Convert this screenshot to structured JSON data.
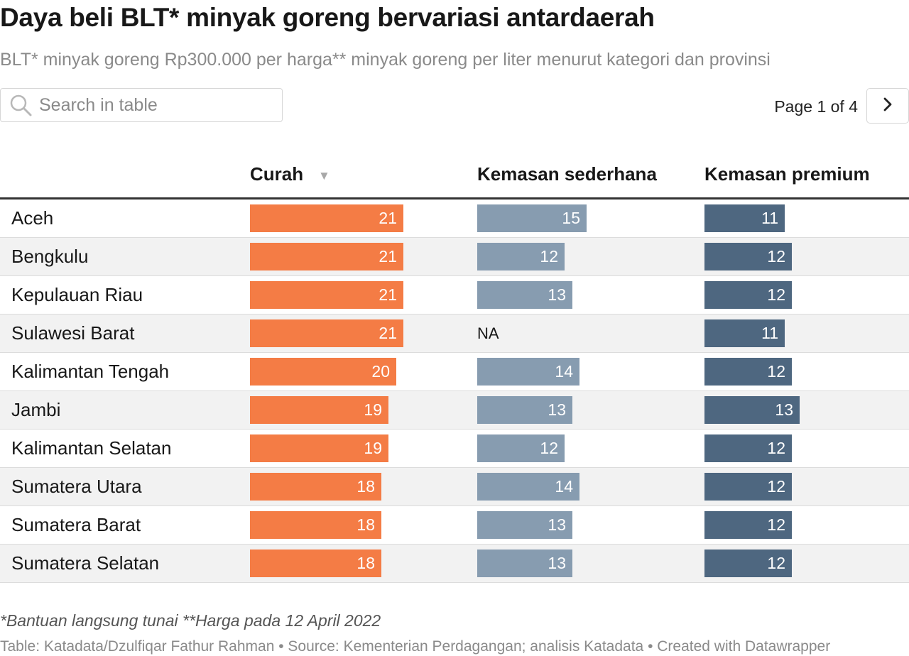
{
  "title": "Daya beli BLT* minyak goreng bervariasi antardaerah",
  "subtitle": "BLT* minyak goreng Rp300.000 per harga** minyak goreng per liter menurut kategori dan provinsi",
  "search": {
    "placeholder": "Search in table",
    "icon": "search-icon"
  },
  "pagination": {
    "text": "Page 1 of 4",
    "next_icon": "chevron-right-icon"
  },
  "table": {
    "columns": [
      "",
      "Curah",
      "Kemasan sederhana",
      "Kemasan premium"
    ],
    "sort_icon": "sort-descending-icon"
  },
  "colors": {
    "curah": "#f47c45",
    "kemasan_sederhana": "#879cb0",
    "kemasan_premium": "#4e6780",
    "row_shade": "#f2f2f2"
  },
  "chart_data": {
    "type": "table",
    "bar_scale_max": 21,
    "series": [
      {
        "name": "Curah",
        "key": "curah"
      },
      {
        "name": "Kemasan sederhana",
        "key": "kemasan_sederhana"
      },
      {
        "name": "Kemasan premium",
        "key": "kemasan_premium"
      }
    ],
    "rows": [
      {
        "province": "Aceh",
        "curah": 21,
        "kemasan_sederhana": 15,
        "kemasan_premium": 11
      },
      {
        "province": "Bengkulu",
        "curah": 21,
        "kemasan_sederhana": 12,
        "kemasan_premium": 12
      },
      {
        "province": "Kepulauan Riau",
        "curah": 21,
        "kemasan_sederhana": 13,
        "kemasan_premium": 12
      },
      {
        "province": "Sulawesi Barat",
        "curah": 21,
        "kemasan_sederhana": "NA",
        "kemasan_premium": 11
      },
      {
        "province": "Kalimantan Tengah",
        "curah": 20,
        "kemasan_sederhana": 14,
        "kemasan_premium": 12
      },
      {
        "province": "Jambi",
        "curah": 19,
        "kemasan_sederhana": 13,
        "kemasan_premium": 13
      },
      {
        "province": "Kalimantan Selatan",
        "curah": 19,
        "kemasan_sederhana": 12,
        "kemasan_premium": 12
      },
      {
        "province": "Sumatera Utara",
        "curah": 18,
        "kemasan_sederhana": 14,
        "kemasan_premium": 12
      },
      {
        "province": "Sumatera Barat",
        "curah": 18,
        "kemasan_sederhana": 13,
        "kemasan_premium": 12
      },
      {
        "province": "Sumatera Selatan",
        "curah": 18,
        "kemasan_sederhana": 13,
        "kemasan_premium": 12
      }
    ]
  },
  "footer": {
    "notes": "*Bantuan langsung tunai **Harga pada 12 April 2022",
    "credit": "Table: Katadata/Dzulfiqar Fathur Rahman • Source: Kementerian Perdagangan; analisis Katadata • Created with Datawrapper"
  }
}
